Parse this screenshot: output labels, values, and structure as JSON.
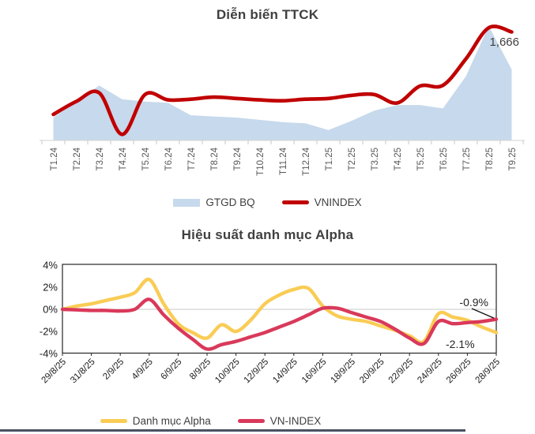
{
  "page": {
    "background": "#ffffff",
    "divider_color": "#4A5264"
  },
  "chart_data": [
    {
      "type": "area+line",
      "title": "Diễn biến TTCK",
      "categories": [
        "T1.24",
        "T2.24",
        "T3.24",
        "T4.24",
        "T5.24",
        "T6.24",
        "T7.24",
        "T8.24",
        "T9.24",
        "T10.24",
        "T11.24",
        "T12.24",
        "T1.25",
        "T2.25",
        "T3.25",
        "T4.25",
        "T5.25",
        "T6.25",
        "T7.25",
        "T8.25",
        "T9.25"
      ],
      "series": [
        {
          "name": "GTGD BQ",
          "type": "area",
          "color": "#C7D9EC",
          "axis_visible": false,
          "ylim": [
            0,
            50
          ],
          "values": [
            10,
            17,
            24,
            18,
            17,
            16.5,
            11,
            10.5,
            10,
            9,
            8,
            7.5,
            4.5,
            8.5,
            13,
            15.5,
            15.5,
            14,
            28,
            50,
            31
          ]
        },
        {
          "name": "VNINDEX",
          "type": "line",
          "color": "#C00000",
          "axis_visible": false,
          "ylim": [
            1040,
            1700
          ],
          "values": [
            1190,
            1265,
            1315,
            1075,
            1305,
            1274,
            1278,
            1290,
            1282,
            1274,
            1269,
            1278,
            1282,
            1300,
            1305,
            1256,
            1354,
            1358,
            1510,
            1690,
            1666
          ]
        }
      ],
      "end_label": {
        "text": "1,666",
        "series": "VNINDEX"
      },
      "legend_position": "bottom",
      "grid": false,
      "x_tick_color": "#595959"
    },
    {
      "type": "line",
      "title": "Hiệu suất danh mục Alpha",
      "x": [
        "29/8/25",
        "30/8/25",
        "31/8/25",
        "1/9/25",
        "2/9/25",
        "3/9/25",
        "4/9/25",
        "5/9/25",
        "6/9/25",
        "7/9/25",
        "8/9/25",
        "9/9/25",
        "10/9/25",
        "11/9/25",
        "12/9/25",
        "13/9/25",
        "14/9/25",
        "15/9/25",
        "16/9/25",
        "17/9/25",
        "18/9/25",
        "19/9/25",
        "20/9/25",
        "21/9/25",
        "22/9/25",
        "23/9/25",
        "24/9/25",
        "25/9/25",
        "26/9/25",
        "27/9/25",
        "28/9/25"
      ],
      "x_label_every": 2,
      "x_tick_labels": [
        "29/8/25",
        "31/8/25",
        "2/9/25",
        "4/9/25",
        "6/9/25",
        "8/9/25",
        "10/9/25",
        "12/9/25",
        "14/9/25",
        "16/9/25",
        "18/9/25",
        "20/9/25",
        "22/9/25",
        "24/9/25",
        "26/9/25",
        "28/9/25"
      ],
      "ylim": [
        -4,
        4
      ],
      "yticks": [
        {
          "label": "4%",
          "value": 4
        },
        {
          "label": "2%",
          "value": 2
        },
        {
          "label": "0%",
          "value": 0
        },
        {
          "label": "-2%",
          "value": -2
        },
        {
          "label": "-4%",
          "value": -4
        }
      ],
      "grid": "zero-line-only",
      "series": [
        {
          "name": "Danh mục Alpha",
          "color": "#F9CC55",
          "values": [
            0,
            0.3,
            0.5,
            0.8,
            1.1,
            1.5,
            2.7,
            0.5,
            -1.3,
            -2.1,
            -2.6,
            -1.4,
            -2.0,
            -1.0,
            0.5,
            1.3,
            1.8,
            1.9,
            0.3,
            -0.6,
            -0.9,
            -1.1,
            -1.5,
            -1.9,
            -2.4,
            -2.9,
            -0.4,
            -0.7,
            -1.0,
            -1.6,
            -2.1
          ]
        },
        {
          "name": "VN-INDEX",
          "color": "#D9395A",
          "values": [
            0,
            -0.05,
            -0.1,
            -0.1,
            -0.15,
            0,
            0.9,
            -0.5,
            -1.7,
            -2.7,
            -3.6,
            -3.2,
            -2.9,
            -2.5,
            -2.1,
            -1.6,
            -1.1,
            -0.5,
            0.1,
            0.1,
            -0.3,
            -0.7,
            -1.1,
            -1.8,
            -2.6,
            -3.1,
            -1.1,
            -1.3,
            -1.2,
            -1.1,
            -0.9
          ]
        }
      ],
      "annotations": [
        {
          "text": "-0.9%",
          "series": "VN-INDEX",
          "pointer_line": true
        },
        {
          "text": "-2.1%",
          "series": "Danh mục Alpha",
          "pointer_line": false
        }
      ],
      "legend_position": "bottom"
    }
  ]
}
